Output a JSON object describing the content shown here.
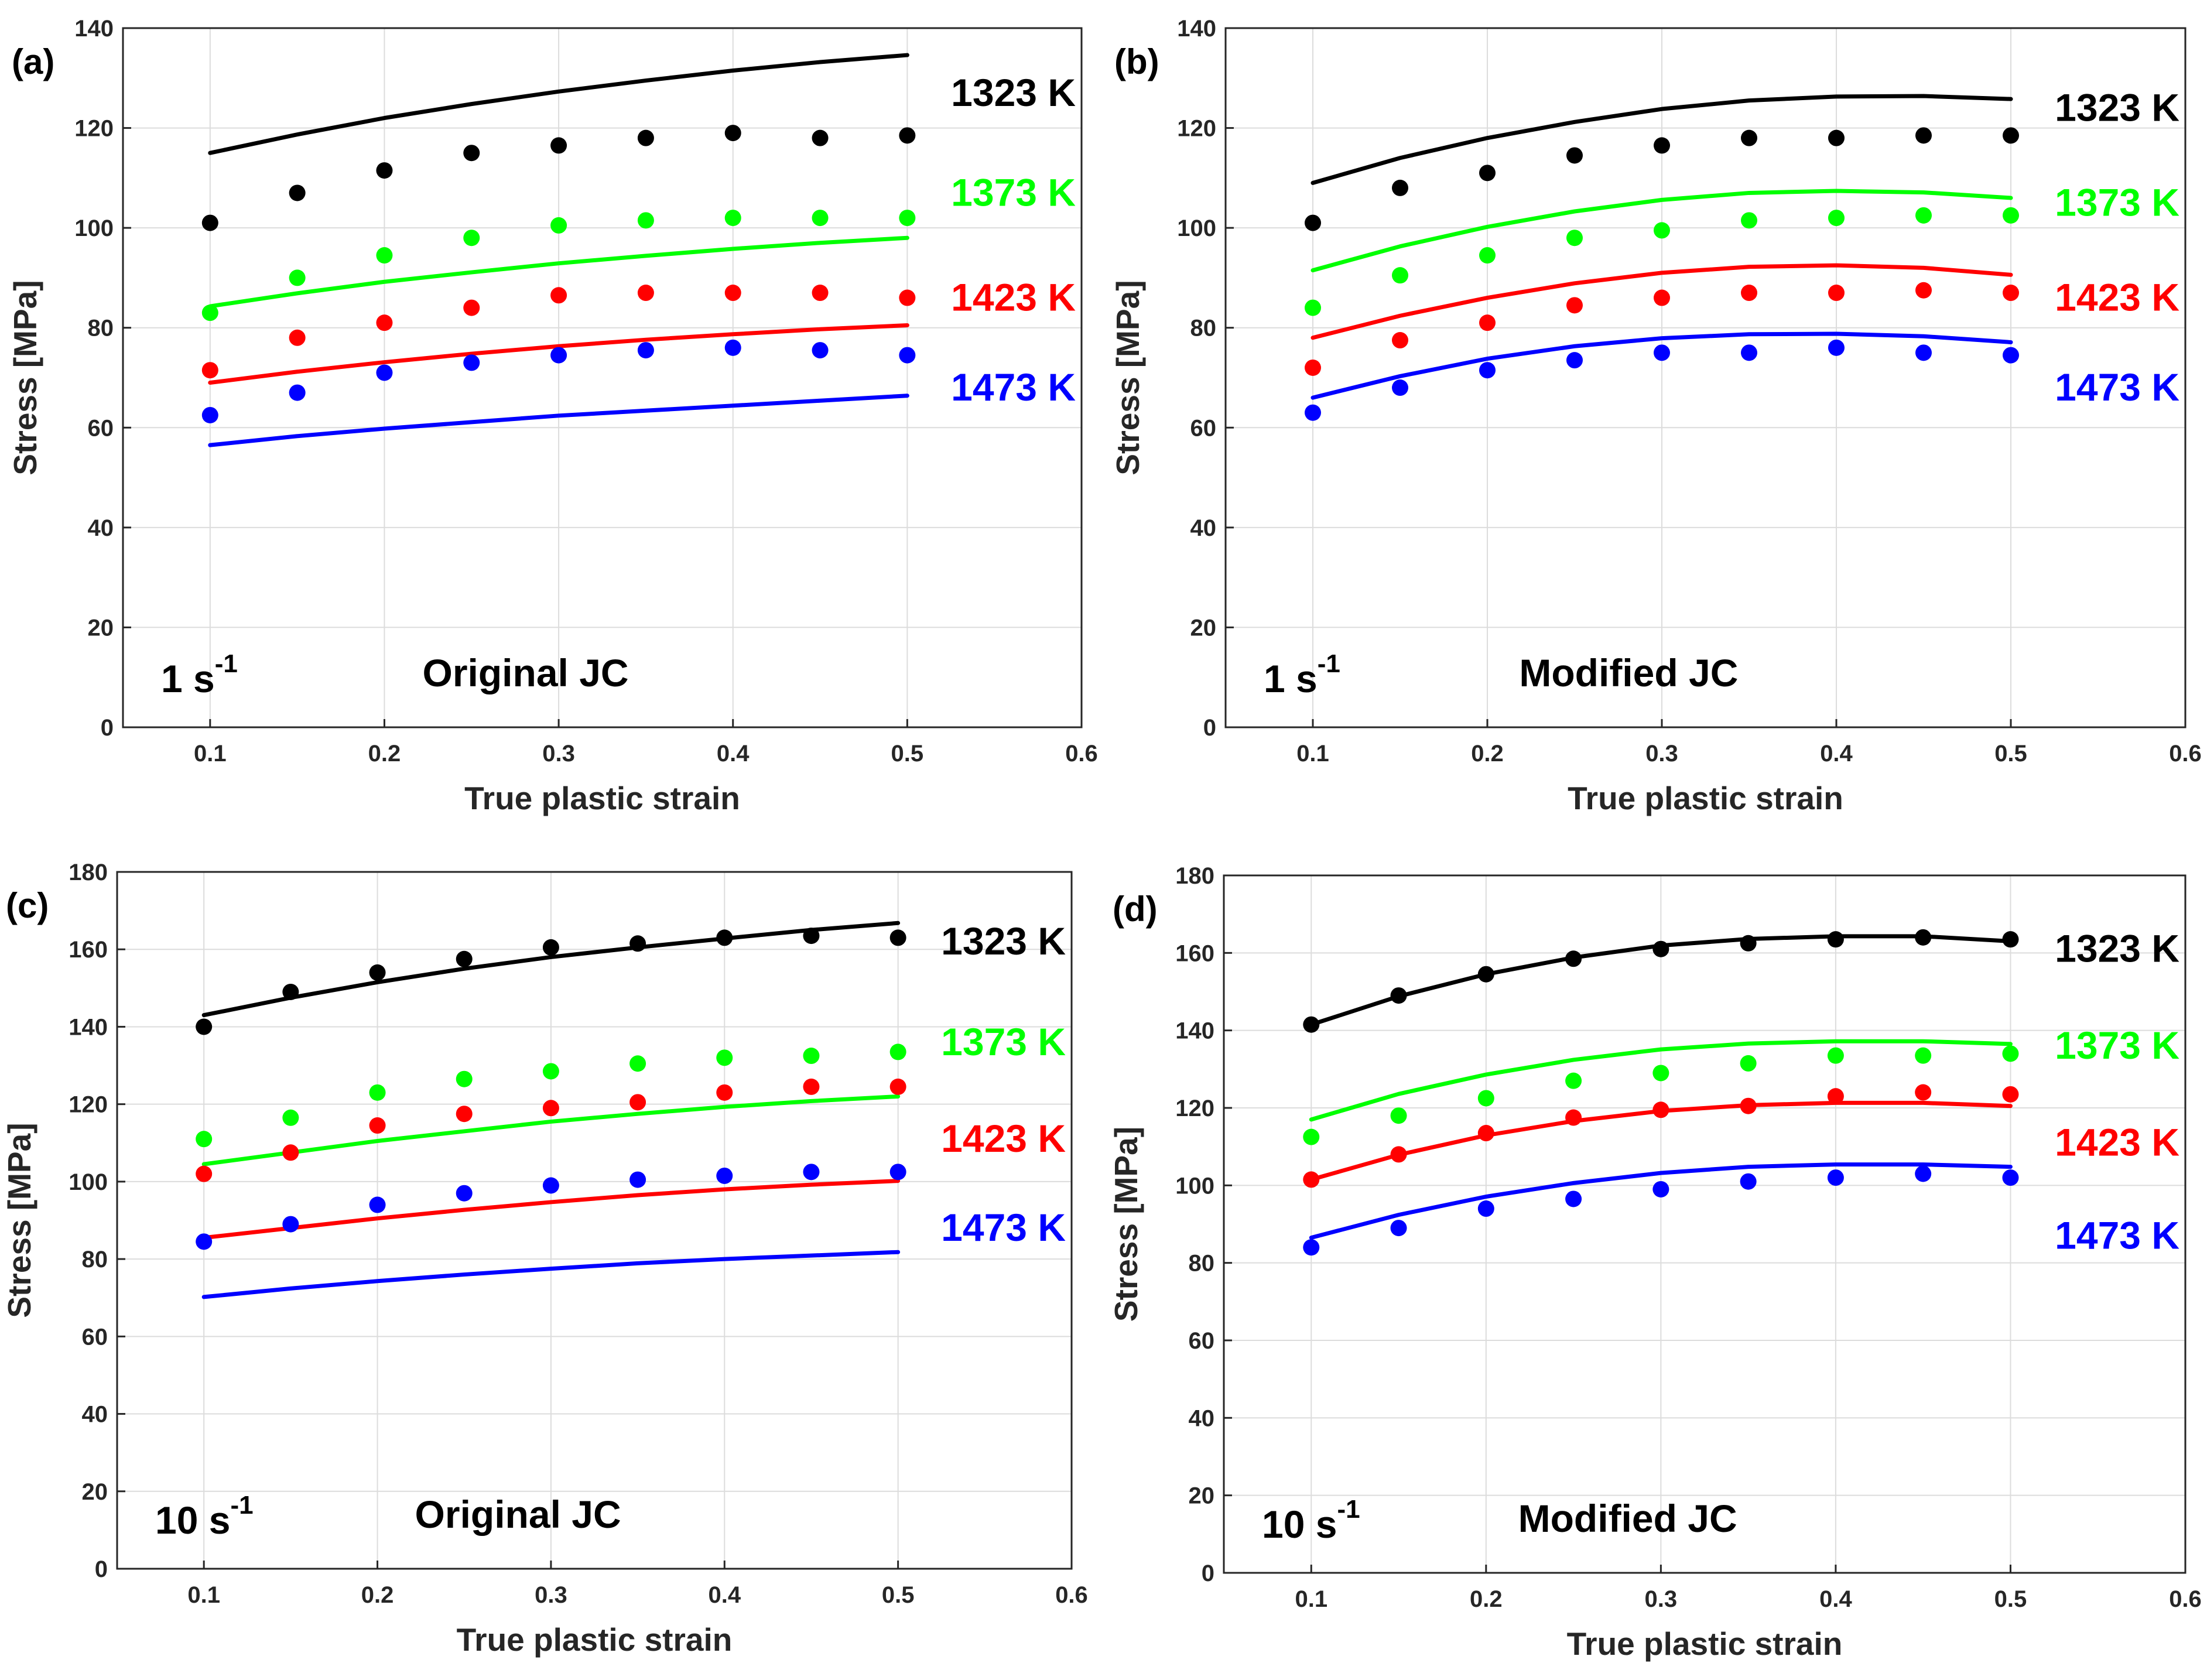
{
  "chart_data": [
    {
      "panel": "(a)",
      "type": "line",
      "rate_main": "1 s",
      "rate_exp": "-1",
      "model": "Original JC",
      "xlabel": "True plastic strain",
      "ylabel": "Stress [MPa]",
      "xlim": [
        0.05,
        0.6
      ],
      "ylim": [
        0,
        140
      ],
      "xticks": [
        0.1,
        0.2,
        0.3,
        0.4,
        0.5,
        0.6
      ],
      "yticks": [
        0,
        20,
        40,
        60,
        80,
        100,
        120,
        140
      ],
      "grid": true,
      "x": [
        0.1,
        0.15,
        0.2,
        0.25,
        0.3,
        0.35,
        0.4,
        0.45,
        0.5
      ],
      "series": [
        {
          "name": "1323 K",
          "color": "#000000",
          "experimental": [
            101,
            107,
            111.5,
            115,
            116.5,
            118,
            119,
            118,
            118.5
          ],
          "model_curve": [
            115,
            118.7,
            122,
            124.8,
            127.3,
            129.5,
            131.5,
            133.2,
            134.6
          ]
        },
        {
          "name": "1373 K",
          "color": "#00ff00",
          "experimental": [
            83,
            90,
            94.5,
            98,
            100.5,
            101.5,
            102,
            102,
            102
          ],
          "model_curve": [
            84.3,
            86.9,
            89.2,
            91.1,
            92.9,
            94.4,
            95.8,
            97,
            98
          ]
        },
        {
          "name": "1423 K",
          "color": "#ff0000",
          "experimental": [
            71.5,
            78,
            81,
            84,
            86.5,
            87,
            87,
            87,
            86
          ],
          "model_curve": [
            69,
            71.2,
            73.1,
            74.8,
            76.3,
            77.6,
            78.7,
            79.7,
            80.5
          ]
        },
        {
          "name": "1473 K",
          "color": "#0000ff",
          "experimental": [
            62.5,
            67,
            71,
            73,
            74.5,
            75.5,
            76,
            75.5,
            74.5
          ],
          "model_curve": [
            56.5,
            58.3,
            59.8,
            61.1,
            62.4,
            63.4,
            64.4,
            65.4,
            66.4
          ]
        }
      ]
    },
    {
      "panel": "(b)",
      "type": "line",
      "rate_main": "1 s",
      "rate_exp": "-1",
      "model": "Modified JC",
      "xlabel": "True plastic strain",
      "ylabel": "Stress [MPa]",
      "xlim": [
        0.05,
        0.6
      ],
      "ylim": [
        0,
        140
      ],
      "xticks": [
        0.1,
        0.2,
        0.3,
        0.4,
        0.5,
        0.6
      ],
      "yticks": [
        0,
        20,
        40,
        60,
        80,
        100,
        120,
        140
      ],
      "grid": true,
      "x": [
        0.1,
        0.15,
        0.2,
        0.25,
        0.3,
        0.35,
        0.4,
        0.45,
        0.5
      ],
      "series": [
        {
          "name": "1323 K",
          "color": "#000000",
          "experimental": [
            101,
            108,
            111,
            114.5,
            116.5,
            118,
            118,
            118.5,
            118.5
          ],
          "model_curve": [
            109,
            114,
            118,
            121.2,
            123.8,
            125.5,
            126.3,
            126.4,
            125.8
          ]
        },
        {
          "name": "1373 K",
          "color": "#00ff00",
          "experimental": [
            84,
            90.5,
            94.5,
            98,
            99.5,
            101.5,
            102,
            102.5,
            102.5
          ],
          "model_curve": [
            91.5,
            96.3,
            100.2,
            103.3,
            105.6,
            107,
            107.4,
            107.1,
            106
          ]
        },
        {
          "name": "1423 K",
          "color": "#ff0000",
          "experimental": [
            72,
            77.5,
            81,
            84.5,
            86,
            87,
            87,
            87.5,
            87
          ],
          "model_curve": [
            78,
            82.4,
            86,
            88.9,
            91,
            92.2,
            92.5,
            92,
            90.6
          ]
        },
        {
          "name": "1473 K",
          "color": "#0000ff",
          "experimental": [
            63,
            68,
            71.5,
            73.5,
            75,
            75,
            76,
            75,
            74.5
          ],
          "model_curve": [
            66,
            70.3,
            73.8,
            76.3,
            77.9,
            78.7,
            78.8,
            78.3,
            77.1
          ]
        }
      ]
    },
    {
      "panel": "(c)",
      "type": "line",
      "rate_main": "10 s",
      "rate_exp": "-1",
      "model": "Original JC",
      "xlabel": "True plastic strain",
      "ylabel": "Stress [MPa]",
      "xlim": [
        0.05,
        0.6
      ],
      "ylim": [
        0,
        180
      ],
      "xticks": [
        0.1,
        0.2,
        0.3,
        0.4,
        0.5,
        0.6
      ],
      "yticks": [
        0,
        20,
        40,
        60,
        80,
        100,
        120,
        140,
        160,
        180
      ],
      "grid": true,
      "x": [
        0.1,
        0.15,
        0.2,
        0.25,
        0.3,
        0.35,
        0.4,
        0.45,
        0.5
      ],
      "series": [
        {
          "name": "1323 K",
          "color": "#000000",
          "experimental": [
            140,
            149,
            154,
            157.5,
            160.5,
            161.5,
            163,
            163.5,
            163
          ],
          "model_curve": [
            143,
            147.5,
            151.5,
            155,
            158,
            160.5,
            162.8,
            165,
            166.8
          ]
        },
        {
          "name": "1373 K",
          "color": "#00ff00",
          "experimental": [
            111,
            116.5,
            123,
            126.5,
            128.5,
            130.5,
            132,
            132.5,
            133.5
          ],
          "model_curve": [
            104.5,
            107.5,
            110.5,
            113,
            115.5,
            117.5,
            119.3,
            120.8,
            122
          ]
        },
        {
          "name": "1423 K",
          "color": "#ff0000",
          "experimental": [
            102,
            107.5,
            114.5,
            117.5,
            119,
            120.5,
            123,
            124.5,
            124.5
          ],
          "model_curve": [
            85.5,
            88,
            90.5,
            92.7,
            94.7,
            96.5,
            98,
            99.2,
            100.2
          ]
        },
        {
          "name": "1473 K",
          "color": "#0000ff",
          "experimental": [
            84.5,
            89,
            94,
            97,
            99,
            100.5,
            101.5,
            102.5,
            102.5
          ],
          "model_curve": [
            70.2,
            72.4,
            74.3,
            76,
            77.5,
            78.9,
            80,
            80.9,
            81.8
          ]
        }
      ]
    },
    {
      "panel": "(d)",
      "type": "line",
      "rate_main": "10 s",
      "rate_exp": "-1",
      "model": "Modified JC",
      "xlabel": "True plastic strain",
      "ylabel": "Stress [MPa]",
      "xlim": [
        0.05,
        0.6
      ],
      "ylim": [
        0,
        180
      ],
      "xticks": [
        0.1,
        0.2,
        0.3,
        0.4,
        0.5,
        0.6
      ],
      "yticks": [
        0,
        20,
        40,
        60,
        80,
        100,
        120,
        140,
        160,
        180
      ],
      "grid": true,
      "x": [
        0.1,
        0.15,
        0.2,
        0.25,
        0.3,
        0.35,
        0.4,
        0.45,
        0.5
      ],
      "series": [
        {
          "name": "1323 K",
          "color": "#000000",
          "experimental": [
            141.5,
            149,
            154.5,
            158.5,
            161,
            162.5,
            163.5,
            164,
            163.5
          ],
          "model_curve": [
            141.5,
            148.8,
            154.5,
            158.8,
            161.9,
            163.6,
            164.3,
            164.3,
            163
          ]
        },
        {
          "name": "1373 K",
          "color": "#00ff00",
          "experimental": [
            112.5,
            118,
            122.5,
            127,
            129,
            131.5,
            133.5,
            133.5,
            134
          ],
          "model_curve": [
            117,
            123.6,
            128.6,
            132.4,
            135.1,
            136.6,
            137.2,
            137.2,
            136.5
          ]
        },
        {
          "name": "1423 K",
          "color": "#ff0000",
          "experimental": [
            101.5,
            108,
            113.5,
            117.5,
            119.5,
            120.5,
            123,
            124,
            123.5
          ],
          "model_curve": [
            101.5,
            107.9,
            112.9,
            116.6,
            119.2,
            120.7,
            121.3,
            121.3,
            120.5
          ]
        },
        {
          "name": "1473 K",
          "color": "#0000ff",
          "experimental": [
            84,
            89,
            94,
            96.5,
            99,
            101,
            102,
            103,
            102
          ],
          "model_curve": [
            86.5,
            92.4,
            97.1,
            100.6,
            103.2,
            104.8,
            105.4,
            105.4,
            104.8
          ]
        }
      ]
    }
  ]
}
